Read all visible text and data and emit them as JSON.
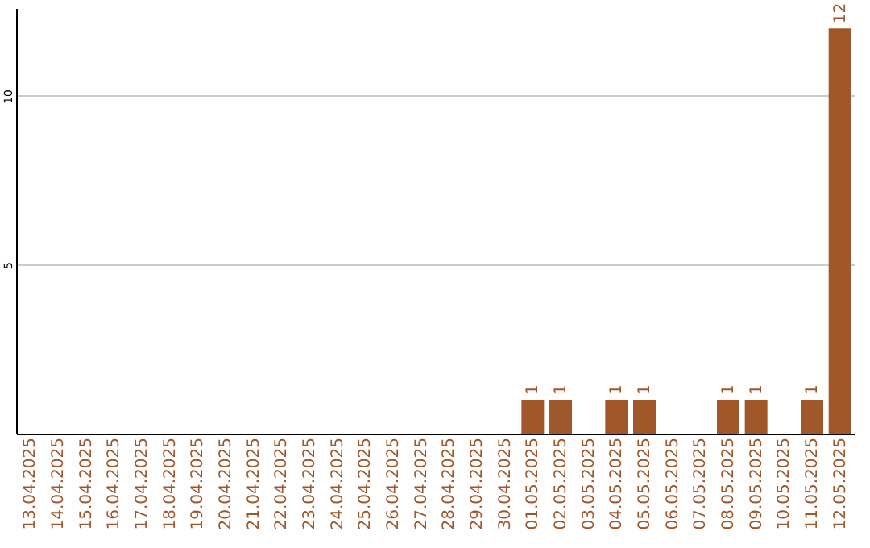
{
  "chart_data": {
    "type": "bar",
    "categories": [
      "13.04.2025",
      "14.04.2025",
      "15.04.2025",
      "16.04.2025",
      "17.04.2025",
      "18.04.2025",
      "19.04.2025",
      "20.04.2025",
      "21.04.2025",
      "22.04.2025",
      "23.04.2025",
      "24.04.2025",
      "25.04.2025",
      "26.04.2025",
      "27.04.2025",
      "28.04.2025",
      "29.04.2025",
      "30.04.2025",
      "01.05.2025",
      "02.05.2025",
      "03.05.2025",
      "04.05.2025",
      "05.05.2025",
      "06.05.2025",
      "07.05.2025",
      "08.05.2025",
      "09.05.2025",
      "10.05.2025",
      "11.05.2025",
      "12.05.2025"
    ],
    "values": [
      0,
      0,
      0,
      0,
      0,
      0,
      0,
      0,
      0,
      0,
      0,
      0,
      0,
      0,
      0,
      0,
      0,
      0,
      1,
      1,
      0,
      1,
      1,
      0,
      0,
      1,
      1,
      0,
      1,
      12
    ],
    "value_labels": [
      null,
      null,
      null,
      null,
      null,
      null,
      null,
      null,
      null,
      null,
      null,
      null,
      null,
      null,
      null,
      null,
      null,
      null,
      "1",
      "1",
      null,
      "1",
      "1",
      null,
      null,
      "1",
      "1",
      null,
      "1",
      "12"
    ],
    "color": "#a0582b",
    "ylim": [
      0,
      12.6
    ],
    "yticks": [
      5,
      10
    ],
    "grid": "y"
  }
}
